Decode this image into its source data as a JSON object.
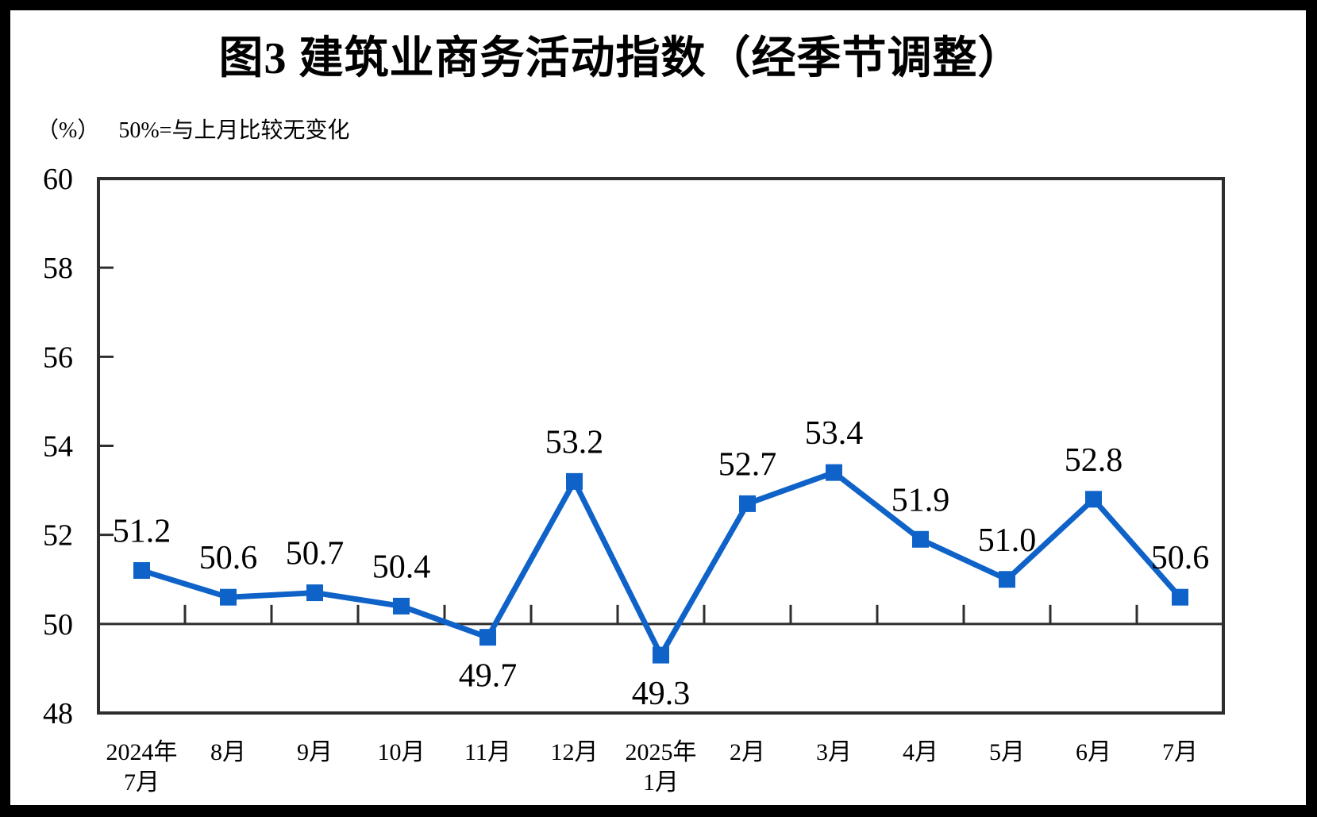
{
  "title": "图3 建筑业商务活动指数（经季节调整）",
  "subtitle": {
    "unit_label": "（%）",
    "note": "50%=与上月比较无变化"
  },
  "chart_data": {
    "type": "line",
    "title": "图3 建筑业商务活动指数（经季节调整）",
    "unit": "（%）",
    "note": "50%=与上月比较无变化",
    "series_name": "建筑业商务活动指数",
    "categories": [
      [
        "2024年",
        "7月"
      ],
      [
        "8月"
      ],
      [
        "9月"
      ],
      [
        "10月"
      ],
      [
        "11月"
      ],
      [
        "12月"
      ],
      [
        "2025年",
        "1月"
      ],
      [
        "2月"
      ],
      [
        "3月"
      ],
      [
        "4月"
      ],
      [
        "5月"
      ],
      [
        "6月"
      ],
      [
        "7月"
      ]
    ],
    "values": [
      51.2,
      50.6,
      50.7,
      50.4,
      49.7,
      53.2,
      49.3,
      52.7,
      53.4,
      51.9,
      51.0,
      52.8,
      50.6
    ],
    "value_decimals": 1,
    "ylim": [
      48,
      60
    ],
    "y_ticks": [
      48,
      50,
      52,
      54,
      56,
      58,
      60
    ],
    "inner_y_tick_values": [
      52,
      54,
      56,
      58
    ],
    "reference_line": 50,
    "labels_below_indices": [
      4,
      6
    ],
    "grid": false,
    "legend": "none",
    "line_color": "#0F63C8",
    "marker_color": "#0F63C8",
    "axis_color": "#2E2E2E",
    "text_color": "#000000"
  }
}
